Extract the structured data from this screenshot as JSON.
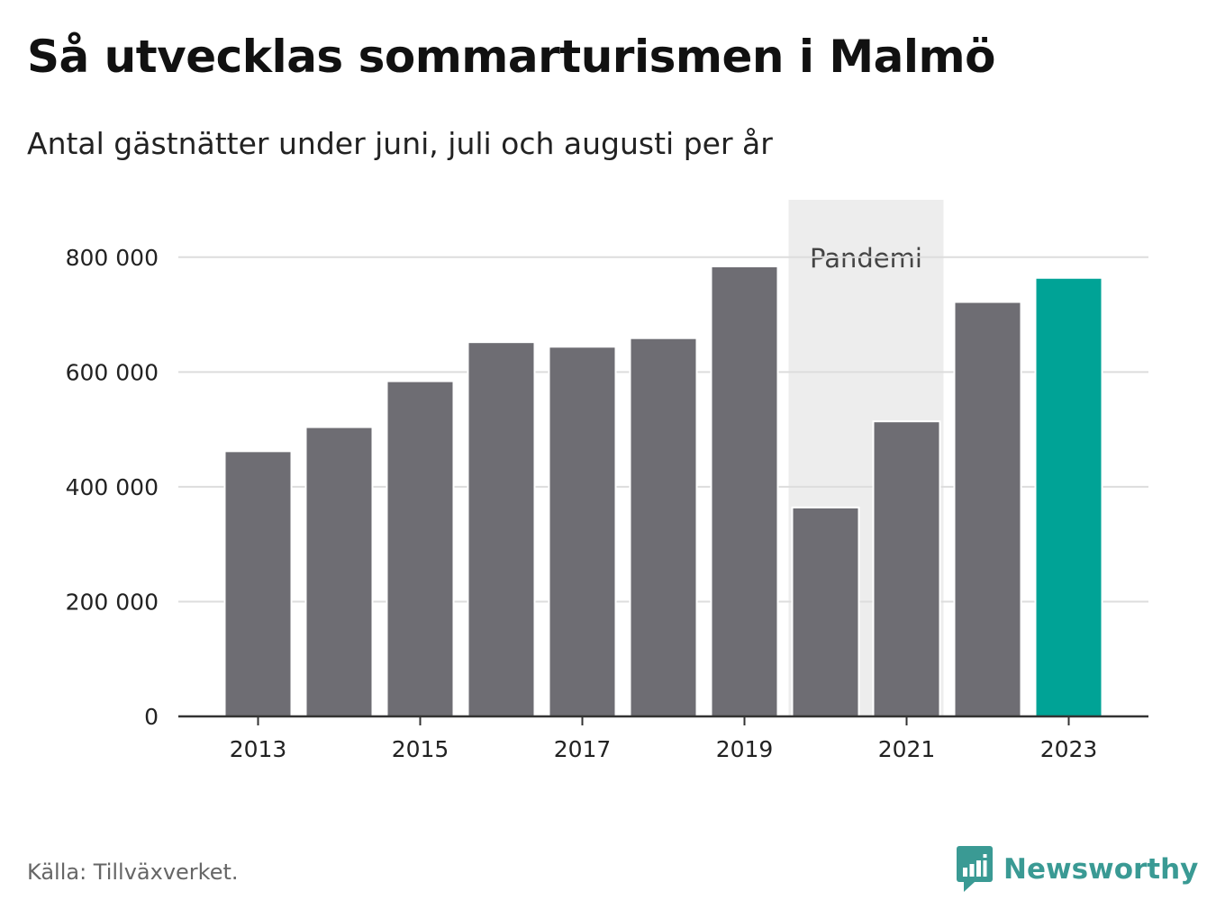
{
  "header": {
    "title": "Så utvecklas sommarturismen i Malmö",
    "subtitle": "Antal gästnätter under juni, juli och augusti per år"
  },
  "footer": {
    "source": "Källa: Tillväxverket.",
    "brand": "Newsworthy",
    "brand_icon": "bar-chart-speech-bubble-icon"
  },
  "colors": {
    "bar_default": "#6e6d73",
    "bar_highlight": "#00a396",
    "band": "#ededed",
    "grid": "#dddddd",
    "axis": "#333333",
    "brand": "#3a9a94"
  },
  "chart_data": {
    "type": "bar",
    "categories": [
      "2013",
      "2014",
      "2015",
      "2016",
      "2017",
      "2018",
      "2019",
      "2020",
      "2021",
      "2022",
      "2023"
    ],
    "values": [
      462000,
      504000,
      584000,
      652000,
      644000,
      659000,
      784000,
      364000,
      514000,
      722000,
      764000
    ],
    "highlight": "2023",
    "ylim": [
      0,
      900000
    ],
    "yticks": [
      0,
      200000,
      400000,
      600000,
      800000
    ],
    "ytick_labels": [
      "0",
      "200 000",
      "400 000",
      "600 000",
      "800 000"
    ],
    "xtick_labels": [
      "2013",
      "2015",
      "2017",
      "2019",
      "2021",
      "2023"
    ],
    "grid": true,
    "annotation": {
      "label": "Pandemi",
      "from": "2020",
      "to": "2021"
    },
    "title": "Så utvecklas sommarturismen i Malmö",
    "xlabel": "",
    "ylabel": ""
  }
}
